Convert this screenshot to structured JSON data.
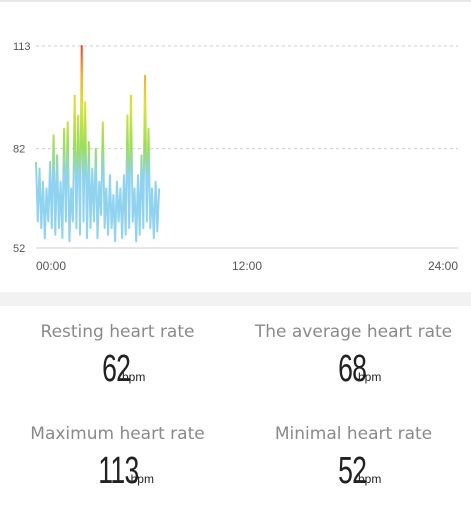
{
  "chart_data": {
    "type": "line",
    "y_ticks": [
      "113",
      "82",
      "52"
    ],
    "x_ticks": [
      "00:00",
      "12:00",
      "24:00"
    ],
    "ylim": [
      52,
      113
    ],
    "xlim_hours": [
      0,
      24
    ],
    "grid": "dashed horizontal at y tick values",
    "color_scale": [
      "#8fd3f0",
      "#9ede5a",
      "#d9e23a",
      "#f3b22e",
      "#d9442a"
    ],
    "series": [
      {
        "x": [
          0.0,
          0.1,
          0.2,
          0.3,
          0.4,
          0.5,
          0.6,
          0.7,
          0.8,
          0.9,
          1.0,
          1.1,
          1.2,
          1.3,
          1.4,
          1.5,
          1.6,
          1.7,
          1.8,
          1.9,
          2.0,
          2.1,
          2.2,
          2.3,
          2.4,
          2.5,
          2.6,
          2.7,
          2.8,
          2.9,
          3.0,
          3.1,
          3.2,
          3.3,
          3.4,
          3.5,
          3.6,
          3.7,
          3.8,
          3.9,
          4.0,
          4.1,
          4.2,
          4.3,
          4.4,
          4.5,
          4.6,
          4.7,
          4.8,
          4.9,
          5.0,
          5.1,
          5.2,
          5.3,
          5.4,
          5.5,
          5.6,
          5.7,
          5.8,
          5.9,
          6.0,
          6.1,
          6.2,
          6.3,
          6.4,
          6.5,
          6.6,
          6.7,
          6.8,
          6.9,
          7.0
        ],
        "values": [
          78,
          60,
          76,
          58,
          72,
          55,
          70,
          60,
          78,
          58,
          86,
          56,
          80,
          58,
          72,
          55,
          88,
          60,
          90,
          54,
          70,
          60,
          98,
          58,
          92,
          56,
          113,
          60,
          96,
          55,
          84,
          58,
          76,
          60,
          82,
          55,
          72,
          62,
          90,
          58,
          70,
          56,
          74,
          58,
          68,
          54,
          72,
          60,
          70,
          55,
          74,
          56,
          92,
          58,
          98,
          60,
          70,
          54,
          74,
          56,
          80,
          58,
          104,
          60,
          88,
          58,
          70,
          55,
          72,
          57,
          70
        ]
      }
    ]
  },
  "stats": {
    "resting": {
      "label": "Resting heart rate",
      "value": "62",
      "unit": "bpm"
    },
    "average": {
      "label": "The average heart rate",
      "value": "68",
      "unit": "bpm"
    },
    "maximum": {
      "label": "Maximum heart rate",
      "value": "113",
      "unit": "bpm"
    },
    "minimal": {
      "label": "Minimal heart rate",
      "value": "52",
      "unit": "bpm"
    }
  }
}
